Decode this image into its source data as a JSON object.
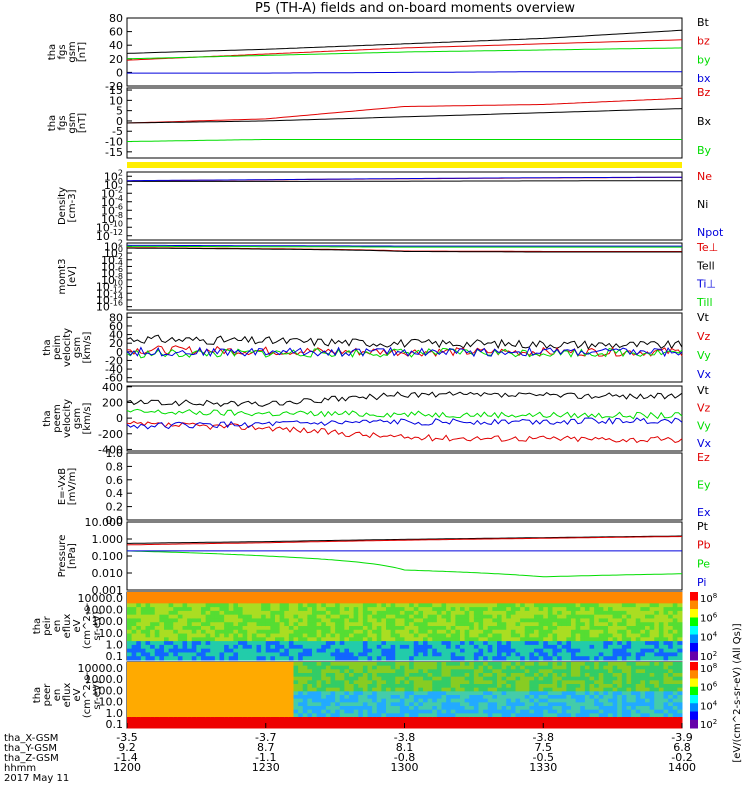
{
  "title": "P5 (TH-A) fields and on-board moments overview",
  "colors": {
    "black": "#000000",
    "red": "#e00000",
    "green": "#00dd00",
    "blue": "#0000dd",
    "yellow": "#ffee00"
  },
  "chart_data": [
    {
      "type": "line",
      "ylabel": [
        "tha",
        "fgs",
        "gsm",
        "[nT]"
      ],
      "ylim": [
        -20,
        80
      ],
      "yticks": [
        "80",
        "60",
        "40",
        "20",
        "0",
        "-20"
      ],
      "ytickvals": [
        80,
        60,
        40,
        20,
        0,
        -20
      ],
      "series": [
        {
          "name": "Bt",
          "color": "black",
          "x": [
            1200,
            1230,
            1300,
            1330,
            1400
          ],
          "values": [
            28,
            34,
            42,
            50,
            62
          ]
        },
        {
          "name": "bz",
          "color": "red",
          "x": [
            1200,
            1230,
            1300,
            1330,
            1400
          ],
          "values": [
            18,
            27,
            36,
            42,
            48
          ]
        },
        {
          "name": "by",
          "color": "green",
          "x": [
            1200,
            1230,
            1300,
            1330,
            1400
          ],
          "values": [
            20,
            25,
            30,
            33,
            36
          ]
        },
        {
          "name": "bx",
          "color": "blue",
          "x": [
            1200,
            1230,
            1300,
            1330,
            1400
          ],
          "values": [
            -1,
            -1,
            0,
            1,
            1
          ]
        }
      ]
    },
    {
      "type": "line",
      "ylabel": [
        "tha",
        "fgs",
        "gsm",
        "[nT]"
      ],
      "ylim": [
        -18,
        16
      ],
      "yticks": [
        "15",
        "10",
        "5",
        "0",
        "-5",
        "-10",
        "-15"
      ],
      "ytickvals": [
        15,
        10,
        5,
        0,
        -5,
        -10,
        -15
      ],
      "series": [
        {
          "name": "Bz",
          "color": "red",
          "x": [
            1200,
            1230,
            1300,
            1330,
            1400
          ],
          "values": [
            -1,
            1,
            7,
            8,
            11
          ]
        },
        {
          "name": "Bx",
          "color": "black",
          "x": [
            1200,
            1230,
            1300,
            1330,
            1400
          ],
          "values": [
            -1,
            0,
            2,
            4,
            6
          ]
        },
        {
          "name": "By",
          "color": "green",
          "x": [
            1200,
            1230,
            1300,
            1330,
            1400
          ],
          "values": [
            -10,
            -9,
            -9,
            -9,
            -9
          ]
        }
      ]
    },
    {
      "type": "line",
      "ylabel": [
        "Density",
        "[cm-3]"
      ],
      "log": true,
      "ylim": [
        1e-13,
        1000
      ],
      "yticks": [
        "10^2",
        "10^0",
        "10^-2",
        "10^-4",
        "10^-6",
        "10^-8",
        "10^-10",
        "10^-12"
      ],
      "ytickvals": [
        100,
        1,
        0.01,
        0.0001,
        1e-06,
        1e-08,
        1e-10,
        1e-12
      ],
      "series": [
        {
          "name": "Ne",
          "color": "red",
          "x": [
            1200,
            1230,
            1300,
            1330,
            1400
          ],
          "values": [
            8,
            14,
            25,
            40,
            55
          ]
        },
        {
          "name": "Ni",
          "color": "black",
          "x": [
            1200,
            1230,
            1300,
            1330,
            1400
          ],
          "values": [
            6,
            6,
            7,
            8,
            9
          ]
        },
        {
          "name": "Npot",
          "color": "blue",
          "x": [
            1200,
            1230,
            1300,
            1330,
            1400
          ],
          "values": [
            9,
            15,
            28,
            45,
            60
          ]
        }
      ]
    },
    {
      "type": "line",
      "ylabel": [
        "momt3",
        "[eV]"
      ],
      "log": true,
      "ylim": [
        1e-17,
        1000
      ],
      "yticks": [
        "10^2",
        "10^0",
        "10^-2",
        "10^-4",
        "10^-6",
        "10^-8",
        "10^-10",
        "10^-12",
        "10^-14",
        "10^-16"
      ],
      "ytickvals": [
        100,
        1,
        0.01,
        0.0001,
        1e-06,
        1e-08,
        1e-10,
        1e-12,
        1e-14,
        1e-16
      ],
      "series": [
        {
          "name": "Te⊥",
          "color": "red",
          "x": [
            1200,
            1230,
            1300,
            1330,
            1400
          ],
          "values": [
            40,
            20,
            4,
            3,
            3
          ]
        },
        {
          "name": "Tell",
          "color": "black",
          "x": [
            1200,
            1230,
            1300,
            1330,
            1400
          ],
          "values": [
            30,
            15,
            3,
            2,
            2
          ]
        },
        {
          "name": "Ti⊥",
          "color": "blue",
          "x": [
            1200,
            1230,
            1300,
            1330,
            1400
          ],
          "values": [
            200,
            150,
            120,
            120,
            120
          ]
        },
        {
          "name": "Till",
          "color": "green",
          "x": [
            1200,
            1230,
            1300,
            1330,
            1400
          ],
          "values": [
            100,
            80,
            60,
            60,
            60
          ]
        }
      ]
    },
    {
      "type": "line",
      "ylabel": [
        "tha",
        "peim",
        "velocity",
        "gsm",
        "[km/s]"
      ],
      "ylim": [
        -70,
        90
      ],
      "yticks": [
        "80",
        "60",
        "40",
        "20",
        "0",
        "-20",
        "-40",
        "-60"
      ],
      "ytickvals": [
        80,
        60,
        40,
        20,
        0,
        -20,
        -40,
        -60
      ],
      "series": [
        {
          "name": "Vt",
          "color": "black",
          "x": [
            1200,
            1230,
            1300,
            1330,
            1400
          ],
          "values": [
            30,
            25,
            20,
            18,
            15
          ]
        },
        {
          "name": "Vz",
          "color": "red",
          "x": [
            1200,
            1230,
            1300,
            1330,
            1400
          ],
          "values": [
            5,
            2,
            0,
            0,
            0
          ]
        },
        {
          "name": "Vy",
          "color": "green",
          "x": [
            1200,
            1230,
            1300,
            1330,
            1400
          ],
          "values": [
            -5,
            -3,
            -2,
            -2,
            -1
          ]
        },
        {
          "name": "Vx",
          "color": "blue",
          "x": [
            1200,
            1230,
            1300,
            1330,
            1400
          ],
          "values": [
            0,
            0,
            0,
            0,
            0
          ]
        }
      ]
    },
    {
      "type": "line",
      "ylabel": [
        "tha",
        "peem",
        "velocity",
        "gsm",
        "[km/s]"
      ],
      "ylim": [
        -420,
        410
      ],
      "yticks": [
        "400",
        "200",
        "0",
        "-200",
        "-400"
      ],
      "ytickvals": [
        400,
        200,
        0,
        -200,
        -400
      ],
      "series": [
        {
          "name": "Vt",
          "color": "black",
          "x": [
            1200,
            1230,
            1300,
            1330,
            1400
          ],
          "values": [
            200,
            180,
            300,
            290,
            280
          ]
        },
        {
          "name": "Vz",
          "color": "red",
          "x": [
            1200,
            1230,
            1300,
            1330,
            1400
          ],
          "values": [
            -80,
            -120,
            -250,
            -260,
            -280
          ]
        },
        {
          "name": "Vy",
          "color": "green",
          "x": [
            1200,
            1230,
            1300,
            1330,
            1400
          ],
          "values": [
            80,
            60,
            50,
            40,
            30
          ]
        },
        {
          "name": "Vx",
          "color": "blue",
          "x": [
            1200,
            1230,
            1300,
            1330,
            1400
          ],
          "values": [
            -100,
            -80,
            -50,
            -40,
            -30
          ]
        }
      ]
    },
    {
      "type": "line",
      "ylabel": [
        "E=-VxB",
        "[mV/m]"
      ],
      "ylim": [
        0,
        1
      ],
      "yticks": [
        "1.0",
        "0.8",
        "0.6",
        "0.4",
        "0.2",
        "0.0"
      ],
      "ytickvals": [
        1,
        0.8,
        0.6,
        0.4,
        0.2,
        0
      ],
      "series": [
        {
          "name": "Ez",
          "color": "red",
          "x": [],
          "values": []
        },
        {
          "name": "Ey",
          "color": "green",
          "x": [],
          "values": []
        },
        {
          "name": "Ex",
          "color": "blue",
          "x": [],
          "values": []
        }
      ]
    },
    {
      "type": "line",
      "ylabel": [
        "Pressure",
        "[nPa]"
      ],
      "log": true,
      "ylim": [
        0.001,
        10
      ],
      "yticks": [
        "10.000",
        "1.000",
        "0.100",
        "0.010",
        "0.001"
      ],
      "ytickvals": [
        10,
        1,
        0.1,
        0.01,
        0.001
      ],
      "series": [
        {
          "name": "Pt",
          "color": "black",
          "x": [
            1200,
            1230,
            1300,
            1330,
            1400
          ],
          "values": [
            0.55,
            0.7,
            0.95,
            1.2,
            1.5
          ]
        },
        {
          "name": "Pb",
          "color": "red",
          "x": [
            1200,
            1230,
            1300,
            1330,
            1400
          ],
          "values": [
            0.45,
            0.6,
            0.85,
            1.1,
            1.4
          ]
        },
        {
          "name": "Pe",
          "color": "green",
          "x": [
            1200,
            1230,
            1300,
            1330,
            1400
          ],
          "values": [
            0.2,
            0.1,
            0.015,
            0.006,
            0.009
          ]
        },
        {
          "name": "Pi",
          "color": "blue",
          "x": [
            1200,
            1230,
            1300,
            1330,
            1400
          ],
          "values": [
            0.2,
            0.2,
            0.2,
            0.2,
            0.2
          ]
        }
      ]
    },
    {
      "type": "heatmap",
      "ylabel": [
        "tha",
        "peir",
        "en",
        "eflux",
        "eV",
        "(cm^2-s-",
        "sr-eV)"
      ],
      "yticks": [
        "10000.0",
        "1000.0",
        "100.0",
        "10.0",
        "1.0",
        "0.1"
      ],
      "colorbar": {
        "label": "eV/(cm^2-s-sr-eV) (All Qs)",
        "ticks": [
          "10^8",
          "10^6",
          "10^4",
          "10^2"
        ]
      }
    },
    {
      "type": "heatmap",
      "ylabel": [
        "tha",
        "peer",
        "en",
        "eflux",
        "eV",
        "(cm^2-s-",
        "sr-eV)"
      ],
      "yticks": [
        "10000.0",
        "1000.0",
        "100.0",
        "10.0",
        "1.0",
        "0.1"
      ],
      "colorbar": {
        "label": "eV/(cm^2-s-sr-eV) (All Qs)",
        "ticks": [
          "10^8",
          "10^6",
          "10^4",
          "10^2"
        ]
      }
    }
  ],
  "xaxis": {
    "rows": [
      {
        "label": "tha_X-GSM",
        "values": [
          "-3.5",
          "-3.7",
          "-3.8",
          "-3.8",
          "-3.9"
        ]
      },
      {
        "label": "tha_Y-GSM",
        "values": [
          "9.2",
          "8.7",
          "8.1",
          "7.5",
          "6.8"
        ]
      },
      {
        "label": "tha_Z-GSM",
        "values": [
          "-1.4",
          "-1.1",
          "-0.8",
          "-0.5",
          "-0.2"
        ]
      },
      {
        "label": "hhmm",
        "values": [
          "1200",
          "1230",
          "1300",
          "1330",
          "1400"
        ]
      }
    ],
    "date": "2017 May 11"
  }
}
